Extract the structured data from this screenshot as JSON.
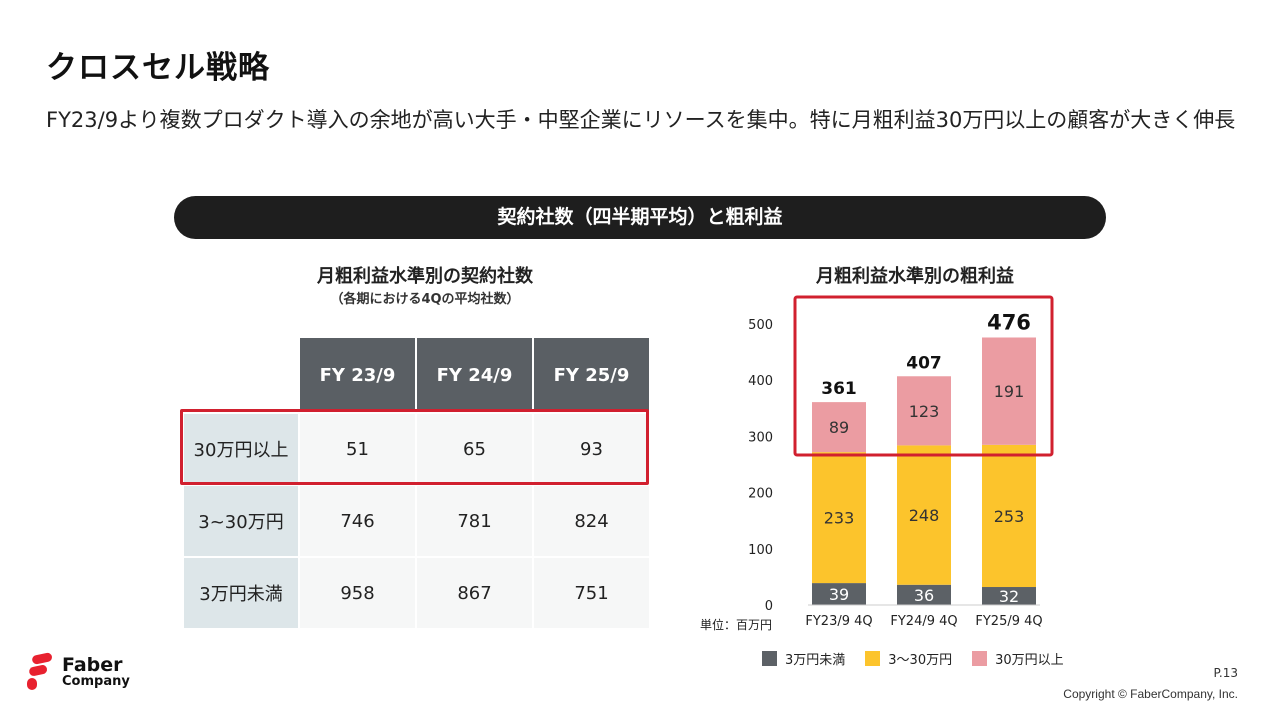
{
  "title": "クロスセル戦略",
  "subtitle": "FY23/9より複数プロダクト導入の余地が高い大手・中堅企業にリソースを集中。特に月粗利益30万円以上の顧客が大きく伸長",
  "banner": "契約社数（四半期平均）と粗利益",
  "table": {
    "title": "月粗利益水準別の契約社数",
    "subtitle": "（各期における4Qの平均社数）",
    "headers": [
      "FY 23/9",
      "FY 24/9",
      "FY 25/9"
    ],
    "rows": [
      {
        "label": "30万円以上",
        "values": [
          "51",
          "65",
          "93"
        ]
      },
      {
        "label": "3~30万円",
        "values": [
          "746",
          "781",
          "824"
        ]
      },
      {
        "label": "3万円未満",
        "values": [
          "958",
          "867",
          "751"
        ]
      }
    ]
  },
  "chart_data": {
    "type": "bar",
    "stacked": true,
    "title": "月粗利益水準別の粗利益",
    "categories": [
      "FY23/9 4Q",
      "FY24/9 4Q",
      "FY25/9 4Q"
    ],
    "series": [
      {
        "name": "3万円未満",
        "color": "#5c6166",
        "values": [
          39,
          36,
          32
        ]
      },
      {
        "name": "3〜30万円",
        "color": "#fcc42c",
        "values": [
          233,
          248,
          253
        ]
      },
      {
        "name": "30万円以上",
        "color": "#eb9ca2",
        "values": [
          89,
          123,
          191
        ]
      }
    ],
    "totals": [
      361,
      407,
      476
    ],
    "ylim": [
      0,
      500
    ],
    "yticks": [
      0,
      100,
      200,
      300,
      400,
      500
    ],
    "unit_label": "単位：百万円",
    "legend": "bottom"
  },
  "footer": {
    "logo_line1": "Faber",
    "logo_line2": "Company",
    "page": "P.13",
    "copyright": "Copyright © FaberCompany, Inc."
  },
  "colors": {
    "highlight": "#d1202f",
    "header_bg": "#5a5f64",
    "row_label_bg": "#dde6e9",
    "banner_bg": "#1e1e1e",
    "logo_red": "#e8212f"
  }
}
